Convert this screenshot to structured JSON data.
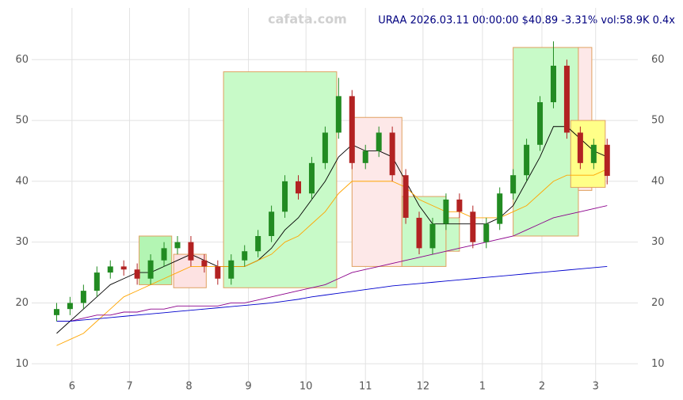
{
  "chart_data": {
    "type": "candlestick",
    "title": "URAA 2026.03.11 00:00:00 $40.89 -3.31% vol:58.9K 0.4x",
    "watermark": "cafata.com",
    "x": [
      0,
      7,
      14,
      21,
      28,
      35,
      42,
      49,
      56,
      63,
      70,
      77,
      84,
      91,
      98,
      105,
      112,
      119,
      126,
      133,
      140,
      147,
      154,
      161,
      168,
      175,
      182,
      189,
      196,
      203,
      210,
      217,
      224,
      231,
      238,
      245,
      252,
      259,
      266,
      273,
      280,
      287
    ],
    "open": [
      18,
      19,
      20,
      22,
      25,
      26,
      25.5,
      24,
      27,
      29,
      30,
      27,
      26,
      24,
      27,
      28.5,
      31,
      35,
      40,
      38,
      43,
      48,
      54,
      43,
      45,
      48,
      41,
      34,
      29,
      33,
      37,
      35,
      30,
      33,
      38,
      41,
      46,
      53,
      59,
      48,
      43,
      46
    ],
    "high": [
      20,
      21,
      23,
      26,
      27,
      27,
      26.5,
      28,
      30,
      31,
      31,
      28,
      27,
      28,
      29.5,
      32,
      36,
      41,
      41,
      44,
      49,
      57,
      55,
      46,
      49,
      49,
      42,
      35,
      34,
      38,
      38,
      36,
      34,
      39,
      42,
      47,
      54,
      63,
      60,
      49,
      47,
      47
    ],
    "low": [
      17,
      18,
      19,
      21,
      24,
      24.5,
      23,
      23,
      26,
      28,
      26,
      25,
      23,
      23,
      26,
      27.5,
      30,
      34,
      37,
      37,
      42,
      47,
      42,
      42,
      44,
      40,
      33,
      28,
      28,
      32,
      34,
      29,
      29,
      32,
      37,
      40,
      45,
      52,
      47,
      42,
      42,
      39.5
    ],
    "close": [
      19,
      20,
      22,
      25,
      26,
      25.5,
      24,
      27,
      29,
      30,
      27,
      26,
      24,
      27,
      28.5,
      31,
      35,
      40,
      38,
      43,
      48,
      54,
      43,
      45,
      48,
      41,
      34,
      29,
      33,
      37,
      35,
      30,
      33,
      38,
      41,
      46,
      53,
      59,
      48,
      43,
      46,
      40.89
    ],
    "up_color": "#228b22",
    "down_color": "#b22222",
    "lines": [
      {
        "color": "#000000",
        "values": [
          15,
          17,
          19,
          21,
          23,
          24,
          25,
          25,
          26,
          27,
          28,
          27,
          26,
          26,
          26,
          27,
          29,
          32,
          34,
          37,
          40,
          44,
          46,
          45,
          45,
          44,
          40,
          36,
          33,
          33,
          33,
          33,
          33,
          34,
          36,
          40,
          44,
          49,
          49,
          47,
          45,
          44
        ]
      },
      {
        "color": "#ffa500",
        "values": [
          13,
          14,
          15,
          17,
          19,
          21,
          22,
          23,
          24,
          25,
          26,
          26,
          26,
          26,
          26,
          27,
          28,
          30,
          31,
          33,
          35,
          38,
          40,
          40,
          40,
          40,
          39,
          37,
          36,
          35,
          35,
          34,
          34,
          34,
          35,
          36,
          38,
          40,
          41,
          41,
          41,
          42
        ]
      },
      {
        "color": "#8b008b",
        "values": [
          17,
          17,
          17.5,
          18,
          18,
          18.5,
          18.5,
          19,
          19,
          19.5,
          19.5,
          19.5,
          19.5,
          20,
          20,
          20.5,
          21,
          21.5,
          22,
          22.5,
          23,
          24,
          25,
          25.5,
          26,
          26.5,
          27,
          27.5,
          28,
          28.5,
          29,
          29.5,
          30,
          30.5,
          31,
          32,
          33,
          34,
          34.5,
          35,
          35.5,
          36
        ]
      },
      {
        "color": "#0000cd",
        "values": [
          17,
          17,
          17.2,
          17.4,
          17.6,
          17.8,
          18,
          18.2,
          18.4,
          18.6,
          18.8,
          19,
          19.2,
          19.4,
          19.6,
          19.8,
          20,
          20.3,
          20.6,
          21,
          21.3,
          21.6,
          21.9,
          22.2,
          22.5,
          22.8,
          23,
          23.2,
          23.4,
          23.6,
          23.8,
          24,
          24.2,
          24.4,
          24.6,
          24.8,
          25,
          25.2,
          25.4,
          25.6,
          25.8,
          26
        ]
      }
    ],
    "zones": [
      {
        "x": [
          43,
          60
        ],
        "y": [
          23,
          31
        ],
        "color": "#b3f5b3"
      },
      {
        "x": [
          61,
          78
        ],
        "y": [
          22.5,
          28
        ],
        "color": "#fde2e2"
      },
      {
        "x": [
          87,
          146
        ],
        "y": [
          22.5,
          58
        ],
        "color": "#c8fac8"
      },
      {
        "x": [
          154,
          180
        ],
        "y": [
          26,
          50.5
        ],
        "color": "#fde8e8"
      },
      {
        "x": [
          180,
          203
        ],
        "y": [
          26,
          37.5
        ],
        "color": "#c8fac8"
      },
      {
        "x": [
          203,
          210
        ],
        "y": [
          28.5,
          34
        ],
        "color": "#c8fac8"
      },
      {
        "x": [
          238,
          272
        ],
        "y": [
          31,
          62
        ],
        "color": "#c8fac8"
      },
      {
        "x": [
          272,
          279
        ],
        "y": [
          38.5,
          62
        ],
        "color": "#fde8e8"
      },
      {
        "x": [
          268,
          286
        ],
        "y": [
          39,
          50
        ],
        "color": "#ffff88"
      }
    ],
    "xlim": [
      -13,
      303
    ],
    "ylim": [
      6,
      68.5
    ],
    "xticks": [
      {
        "value": 8,
        "label": "6"
      },
      {
        "value": 38,
        "label": "7"
      },
      {
        "value": 69,
        "label": "8"
      },
      {
        "value": 100,
        "label": "9"
      },
      {
        "value": 130,
        "label": "10"
      },
      {
        "value": 161,
        "label": "11"
      },
      {
        "value": 191,
        "label": "12"
      },
      {
        "value": 222,
        "label": "1"
      },
      {
        "value": 253,
        "label": "2"
      },
      {
        "value": 281,
        "label": "3"
      }
    ],
    "yticks": [
      10,
      20,
      30,
      40,
      50,
      60
    ],
    "grid": true
  }
}
